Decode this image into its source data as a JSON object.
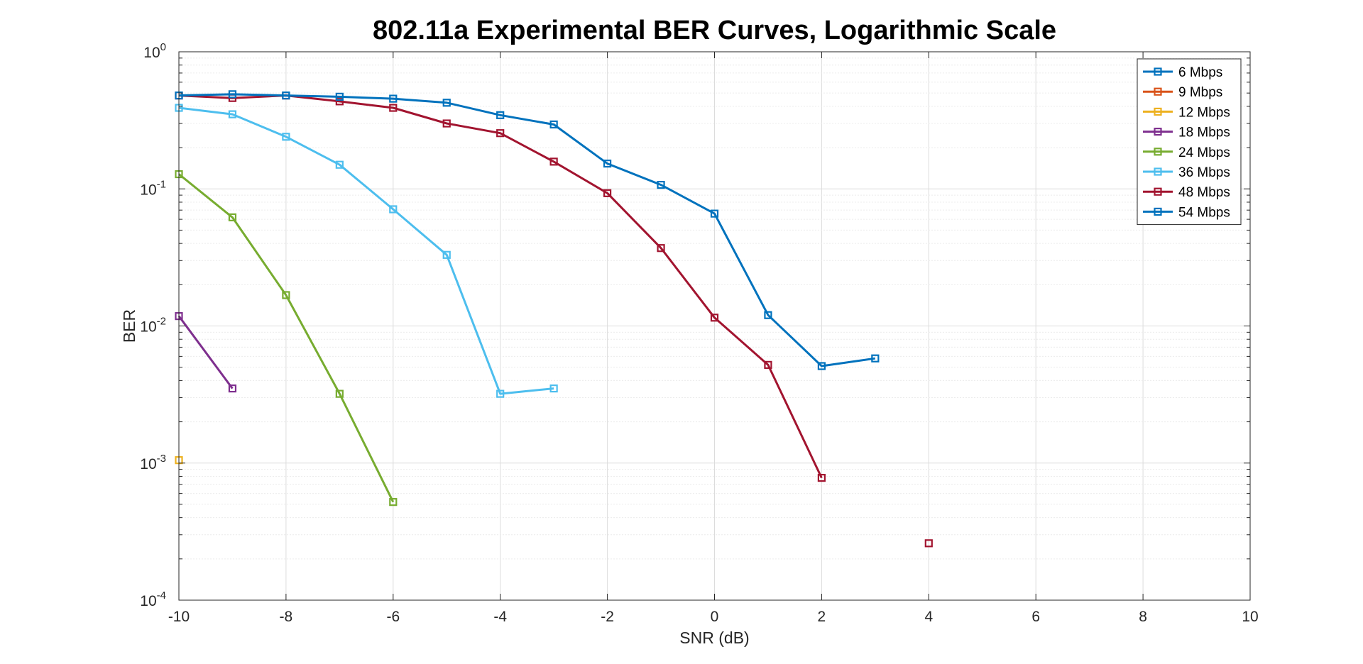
{
  "chart_data": {
    "type": "line",
    "title": "802.11a Experimental BER Curves, Logarithmic Scale",
    "xlabel": "SNR (dB)",
    "ylabel": "BER",
    "x_scale": "linear",
    "y_scale": "log",
    "xlim": [
      -10,
      10
    ],
    "ylim": [
      0.0001,
      1
    ],
    "x_ticks": [
      "-10",
      "-8",
      "-6",
      "-4",
      "-2",
      "0",
      "2",
      "4",
      "6",
      "8",
      "10"
    ],
    "y_ticks": [
      {
        "value": 0.0001,
        "base": "10",
        "exp": "-4"
      },
      {
        "value": 0.001,
        "base": "10",
        "exp": "-3"
      },
      {
        "value": 0.01,
        "base": "10",
        "exp": "-2"
      },
      {
        "value": 0.1,
        "base": "10",
        "exp": "-1"
      },
      {
        "value": 1,
        "base": "10",
        "exp": "0"
      }
    ],
    "grid": true,
    "legend_position": "top-right",
    "marker": "square",
    "series": [
      {
        "name": "6 Mbps",
        "color": "#0072BD",
        "points": []
      },
      {
        "name": "9 Mbps",
        "color": "#D95319",
        "points": []
      },
      {
        "name": "12 Mbps",
        "color": "#EDB120",
        "points": [
          [
            -10,
            0.00105
          ]
        ]
      },
      {
        "name": "18 Mbps",
        "color": "#7E2F8E",
        "points": [
          [
            -10,
            0.0118
          ],
          [
            -9,
            0.0035
          ]
        ]
      },
      {
        "name": "24 Mbps",
        "color": "#77AC30",
        "points": [
          [
            -10,
            0.128
          ],
          [
            -9,
            0.062
          ],
          [
            -8,
            0.0168
          ],
          [
            -7,
            0.0032
          ],
          [
            -6,
            0.00052
          ]
        ]
      },
      {
        "name": "36 Mbps",
        "color": "#4DBEEE",
        "points": [
          [
            -10,
            0.39
          ],
          [
            -9,
            0.35
          ],
          [
            -8,
            0.24
          ],
          [
            -7,
            0.15
          ],
          [
            -6,
            0.071
          ],
          [
            -5,
            0.033
          ],
          [
            -4,
            0.0032
          ],
          [
            -3,
            0.0035
          ]
        ]
      },
      {
        "name": "48 Mbps",
        "color": "#A2142F",
        "points": [
          [
            -10,
            0.48
          ],
          [
            -9,
            0.46
          ],
          [
            -8,
            0.48
          ],
          [
            -7,
            0.435
          ],
          [
            -6,
            0.39
          ],
          [
            -5,
            0.3
          ],
          [
            -4,
            0.255
          ],
          [
            -3,
            0.158
          ],
          [
            -2,
            0.093
          ],
          [
            -1,
            0.037
          ],
          [
            0,
            0.0115
          ],
          [
            1,
            0.0052
          ],
          [
            2,
            0.00078
          ],
          [
            null,
            null
          ],
          [
            4,
            0.00026
          ]
        ]
      },
      {
        "name": "54 Mbps",
        "color": "#0072BD",
        "points": [
          [
            -10,
            0.48
          ],
          [
            -9,
            0.49
          ],
          [
            -8,
            0.48
          ],
          [
            -7,
            0.47
          ],
          [
            -6,
            0.455
          ],
          [
            -5,
            0.425
          ],
          [
            -4,
            0.345
          ],
          [
            -3,
            0.295
          ],
          [
            -2,
            0.153
          ],
          [
            -1,
            0.107
          ],
          [
            0,
            0.066
          ],
          [
            1,
            0.012
          ],
          [
            2,
            0.0051
          ],
          [
            3,
            0.0058
          ]
        ]
      }
    ]
  }
}
